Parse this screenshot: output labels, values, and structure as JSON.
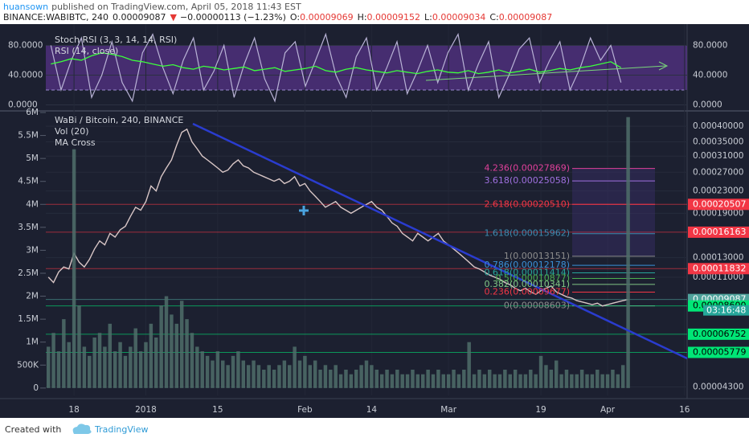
{
  "header": {
    "author": "huansown",
    "published": "published on TradingView.com, April 05, 2018 11:43 EST",
    "symbol": "BINANCE:WABIBTC, 240",
    "last": "0.00009087",
    "direction": "▼",
    "change": "−0.00000113 (−1.23%)",
    "open_label": "O:",
    "open": "0.00009069",
    "high_label": "H:",
    "high": "0.00009152",
    "low_label": "L:",
    "low": "0.00009034",
    "close_label": "C:",
    "close": "0.00009087"
  },
  "footer": {
    "created": "Created with",
    "brand": "TradingView"
  },
  "chart_data": [
    {
      "type": "line",
      "categories": [
        null,
        null,
        null,
        null,
        null,
        null,
        null,
        null,
        null,
        null,
        null,
        null,
        null,
        null,
        null,
        null,
        null,
        null,
        null,
        null,
        null,
        null,
        null,
        null,
        null,
        null,
        null,
        null,
        null,
        null,
        null,
        null,
        null,
        null,
        null,
        null,
        null,
        null,
        null,
        null,
        null,
        null,
        null,
        null,
        null,
        null,
        null,
        null,
        null,
        null,
        null,
        null,
        null,
        null,
        null,
        null,
        null,
        null,
        null,
        null,
        null,
        null,
        null
      ],
      "series": [
        {
          "name": "Stoch RSI (3, 3, 14, 14, RSI)",
          "color": "#b9b3d6",
          "values": [
            80,
            20,
            60,
            90,
            10,
            40,
            85,
            30,
            5,
            70,
            95,
            50,
            15,
            60,
            90,
            20,
            45,
            80,
            10,
            55,
            90,
            35,
            5,
            70,
            85,
            25,
            60,
            95,
            40,
            10,
            65,
            90,
            20,
            50,
            85,
            15,
            45,
            80,
            30,
            70,
            95,
            20,
            55,
            85,
            10,
            40,
            75,
            90,
            30,
            60,
            85,
            20,
            50,
            90,
            60,
            80,
            30,
            null,
            null,
            null,
            null,
            null,
            null
          ]
        },
        {
          "name": "RSI (14, close)",
          "color": "#3cff3c",
          "values": [
            55,
            58,
            62,
            60,
            66,
            70,
            68,
            65,
            60,
            58,
            55,
            52,
            54,
            50,
            48,
            52,
            50,
            47,
            49,
            51,
            46,
            48,
            50,
            45,
            47,
            49,
            52,
            46,
            44,
            48,
            50,
            47,
            45,
            43,
            46,
            44,
            42,
            45,
            47,
            44,
            43,
            46,
            42,
            44,
            47,
            43,
            45,
            48,
            44,
            46,
            49,
            47,
            50,
            52,
            55,
            58,
            50,
            null,
            null,
            null,
            null,
            null,
            null
          ]
        }
      ],
      "ylim": [
        -6,
        100
      ],
      "yticks": [
        {
          "value": 80,
          "label": "80.0000"
        },
        {
          "value": 40,
          "label": "40.0000"
        },
        {
          "value": 0,
          "label": "0.0000"
        }
      ],
      "band": [
        20,
        80
      ],
      "band_color": "#7b3fbf"
    },
    {
      "type": "line",
      "categories": [
        null,
        null,
        null,
        null,
        null,
        "18",
        null,
        null,
        null,
        null,
        null,
        null,
        null,
        null,
        null,
        null,
        null,
        null,
        null,
        "2018",
        null,
        null,
        null,
        null,
        null,
        null,
        null,
        null,
        null,
        null,
        null,
        null,
        null,
        "15",
        null,
        null,
        null,
        null,
        null,
        null,
        null,
        null,
        null,
        null,
        null,
        null,
        null,
        null,
        null,
        null,
        "Feb",
        null,
        null,
        null,
        null,
        null,
        null,
        null,
        null,
        null,
        null,
        null,
        null,
        "14",
        null,
        null,
        null,
        null,
        null,
        null,
        null,
        null,
        null,
        null,
        null,
        null,
        null,
        null,
        "Mar",
        null,
        null,
        null,
        null,
        null,
        null,
        null,
        null,
        null,
        null,
        null,
        null,
        null,
        null,
        null,
        null,
        null,
        "19",
        null,
        null,
        null,
        null,
        null,
        null,
        null,
        null,
        null,
        null,
        null,
        null,
        "Apr",
        null,
        null,
        null,
        null,
        null,
        null,
        null,
        null,
        null,
        null,
        null,
        null,
        null,
        null,
        "16"
      ],
      "series": [
        {
          "name": "WaBi / Bitcoin, 240, BINANCE",
          "color": "#d8c6c6",
          "values": [
            0.00011,
            0.000105,
            0.000115,
            0.00012,
            0.000118,
            0.000135,
            0.000125,
            0.00012,
            0.000128,
            0.00014,
            0.00015,
            0.000145,
            0.00016,
            0.000155,
            0.000165,
            0.00017,
            0.000185,
            0.0002,
            0.000195,
            0.00021,
            0.00024,
            0.00023,
            0.00026,
            0.00028,
            0.0003,
            0.00034,
            0.00038,
            0.00039,
            0.00035,
            0.00033,
            0.00031,
            0.0003,
            0.00029,
            0.00028,
            0.00027,
            0.000275,
            0.00029,
            0.0003,
            0.000285,
            0.00028,
            0.00027,
            0.000265,
            0.00026,
            0.000255,
            0.00025,
            0.000255,
            0.000245,
            0.00025,
            0.00026,
            0.00024,
            0.000245,
            0.00023,
            0.00022,
            0.00021,
            0.0002,
            0.000205,
            0.00021,
            0.0002,
            0.000195,
            0.00019,
            0.000195,
            0.0002,
            0.000205,
            0.00021,
            0.0002,
            0.000195,
            0.000185,
            0.000175,
            0.00017,
            0.00016,
            0.000155,
            0.00015,
            0.00016,
            0.000155,
            0.00015,
            0.000155,
            0.00016,
            0.00015,
            0.000145,
            0.00014,
            0.000135,
            0.00013,
            0.000125,
            0.00012,
            0.000118,
            0.000115,
            0.000112,
            0.00011,
            0.000108,
            0.000105,
            0.000103,
            0.0001,
            9.8e-05,
            0.0001,
            9.7e-05,
            9.5e-05,
            9.8e-05,
            0.0001,
            0.000102,
            9.7e-05,
            9.5e-05,
            9.3e-05,
            9.2e-05,
            9e-05,
            8.9e-05,
            8.8e-05,
            8.7e-05,
            8.8e-05,
            8.6e-05,
            8.7e-05,
            8.8e-05,
            8.9e-05,
            9e-05,
            9.087e-05,
            null,
            null,
            null,
            null,
            null,
            null,
            null,
            null,
            null,
            null,
            null
          ]
        },
        {
          "name": "Vol (20)",
          "type": "bar",
          "axis": "y2",
          "color": "#4f6f6a",
          "values": [
            900000,
            1200000,
            800000,
            1500000,
            1000000,
            5200000,
            1800000,
            900000,
            700000,
            1100000,
            1200000,
            900000,
            1400000,
            800000,
            1000000,
            700000,
            900000,
            1300000,
            800000,
            1000000,
            1400000,
            1100000,
            1800000,
            2000000,
            1600000,
            1400000,
            1900000,
            1500000,
            1200000,
            900000,
            800000,
            700000,
            600000,
            800000,
            600000,
            500000,
            700000,
            800000,
            600000,
            500000,
            600000,
            500000,
            400000,
            500000,
            400000,
            500000,
            600000,
            500000,
            900000,
            600000,
            700000,
            500000,
            600000,
            400000,
            500000,
            400000,
            500000,
            300000,
            400000,
            300000,
            400000,
            500000,
            600000,
            500000,
            400000,
            300000,
            400000,
            300000,
            400000,
            300000,
            300000,
            400000,
            300000,
            300000,
            400000,
            300000,
            400000,
            300000,
            300000,
            400000,
            300000,
            400000,
            1000000,
            300000,
            400000,
            300000,
            400000,
            300000,
            300000,
            400000,
            300000,
            400000,
            300000,
            300000,
            400000,
            300000,
            700000,
            500000,
            400000,
            600000,
            300000,
            400000,
            300000,
            300000,
            400000,
            300000,
            300000,
            400000,
            300000,
            300000,
            400000,
            300000,
            500000,
            5900000,
            null,
            null,
            null,
            null,
            null,
            null,
            null,
            null,
            null,
            null,
            null
          ]
        }
      ],
      "annotations": [
        "MA Cross"
      ],
      "log_scale": true,
      "ylim": [
        4e-05,
        0.00045
      ],
      "yticks": [
        {
          "value": 0.0004,
          "label": "0.00040000"
        },
        {
          "value": 0.00035,
          "label": "0.00035000"
        },
        {
          "value": 0.00031,
          "label": "0.00031000"
        },
        {
          "value": 0.00027,
          "label": "0.00027000"
        },
        {
          "value": 0.00023,
          "label": "0.00023000"
        },
        {
          "value": 0.00019,
          "label": "0.00019000"
        },
        {
          "value": 0.00013,
          "label": "0.00013000"
        },
        {
          "value": 0.00011,
          "label": "0.00011000"
        },
        {
          "value": 4.3e-05,
          "label": "0.00004300"
        }
      ],
      "y2lim": [
        -160000,
        6000000
      ],
      "y2ticks": [
        {
          "value": 6000000,
          "label": "6M"
        },
        {
          "value": 5500000,
          "label": "5.5M"
        },
        {
          "value": 5000000,
          "label": "5M"
        },
        {
          "value": 4500000,
          "label": "4.5M"
        },
        {
          "value": 4000000,
          "label": "4M"
        },
        {
          "value": 3500000,
          "label": "3.5M"
        },
        {
          "value": 3000000,
          "label": "3M"
        },
        {
          "value": 2500000,
          "label": "2.5M"
        },
        {
          "value": 2000000,
          "label": "2M"
        },
        {
          "value": 1500000,
          "label": "1.5M"
        },
        {
          "value": 1000000,
          "label": "1M"
        },
        {
          "value": 500000,
          "label": "500K"
        },
        0
      ],
      "levels": [
        {
          "value": 0.00020507,
          "label": "0.00020507",
          "color": "#f23645"
        },
        {
          "value": 0.00016163,
          "label": "0.00016163",
          "color": "#f23645"
        },
        {
          "value": 0.00011832,
          "label": "0.00011832",
          "color": "#f23645"
        },
        {
          "value": 9.087e-05,
          "label": "0.00009087",
          "color": "#4fa39c"
        },
        {
          "value": 8.6e-05,
          "label": "0.00008600",
          "color": "#00e676"
        },
        {
          "value": 6.752e-05,
          "label": "0.00006752",
          "color": "#00e676"
        },
        {
          "value": 5.779e-05,
          "label": "0.00005779",
          "color": "#00e676"
        }
      ],
      "countdown": "03:16:48",
      "fib_levels": [
        {
          "value": 0.00027869,
          "label": "4.236(0.00027869)",
          "color": "#e0409a"
        },
        {
          "value": 0.00025058,
          "label": "3.618(0.00025058)",
          "color": "#a070e0"
        },
        {
          "value": 0.0002051,
          "label": "2.618(0.00020510)",
          "color": "#f23645"
        },
        {
          "value": 0.00015962,
          "label": "1.618(0.00015962)",
          "color": "#3c8bb0"
        },
        {
          "value": 0.00013151,
          "label": "1(0.00013151)",
          "color": "#8c8c8c"
        },
        {
          "value": 0.00012178,
          "label": "0.786(0.00012178)",
          "color": "#3a8fd6"
        },
        {
          "value": 0.00011414,
          "label": "0.618(0.00011414)",
          "color": "#26a69a"
        },
        {
          "value": 0.00010877,
          "label": "0.5(0.00010877)",
          "color": "#4caf50"
        },
        {
          "value": 0.00010341,
          "label": "0.382(0.00010341)",
          "color": "#81c784"
        },
        {
          "value": 9.677e-05,
          "label": "0.236(0.00009677)",
          "color": "#f23645"
        },
        {
          "value": 8.603e-05,
          "label": "0(0.00008603)",
          "color": "#8c8c8c"
        }
      ]
    }
  ]
}
